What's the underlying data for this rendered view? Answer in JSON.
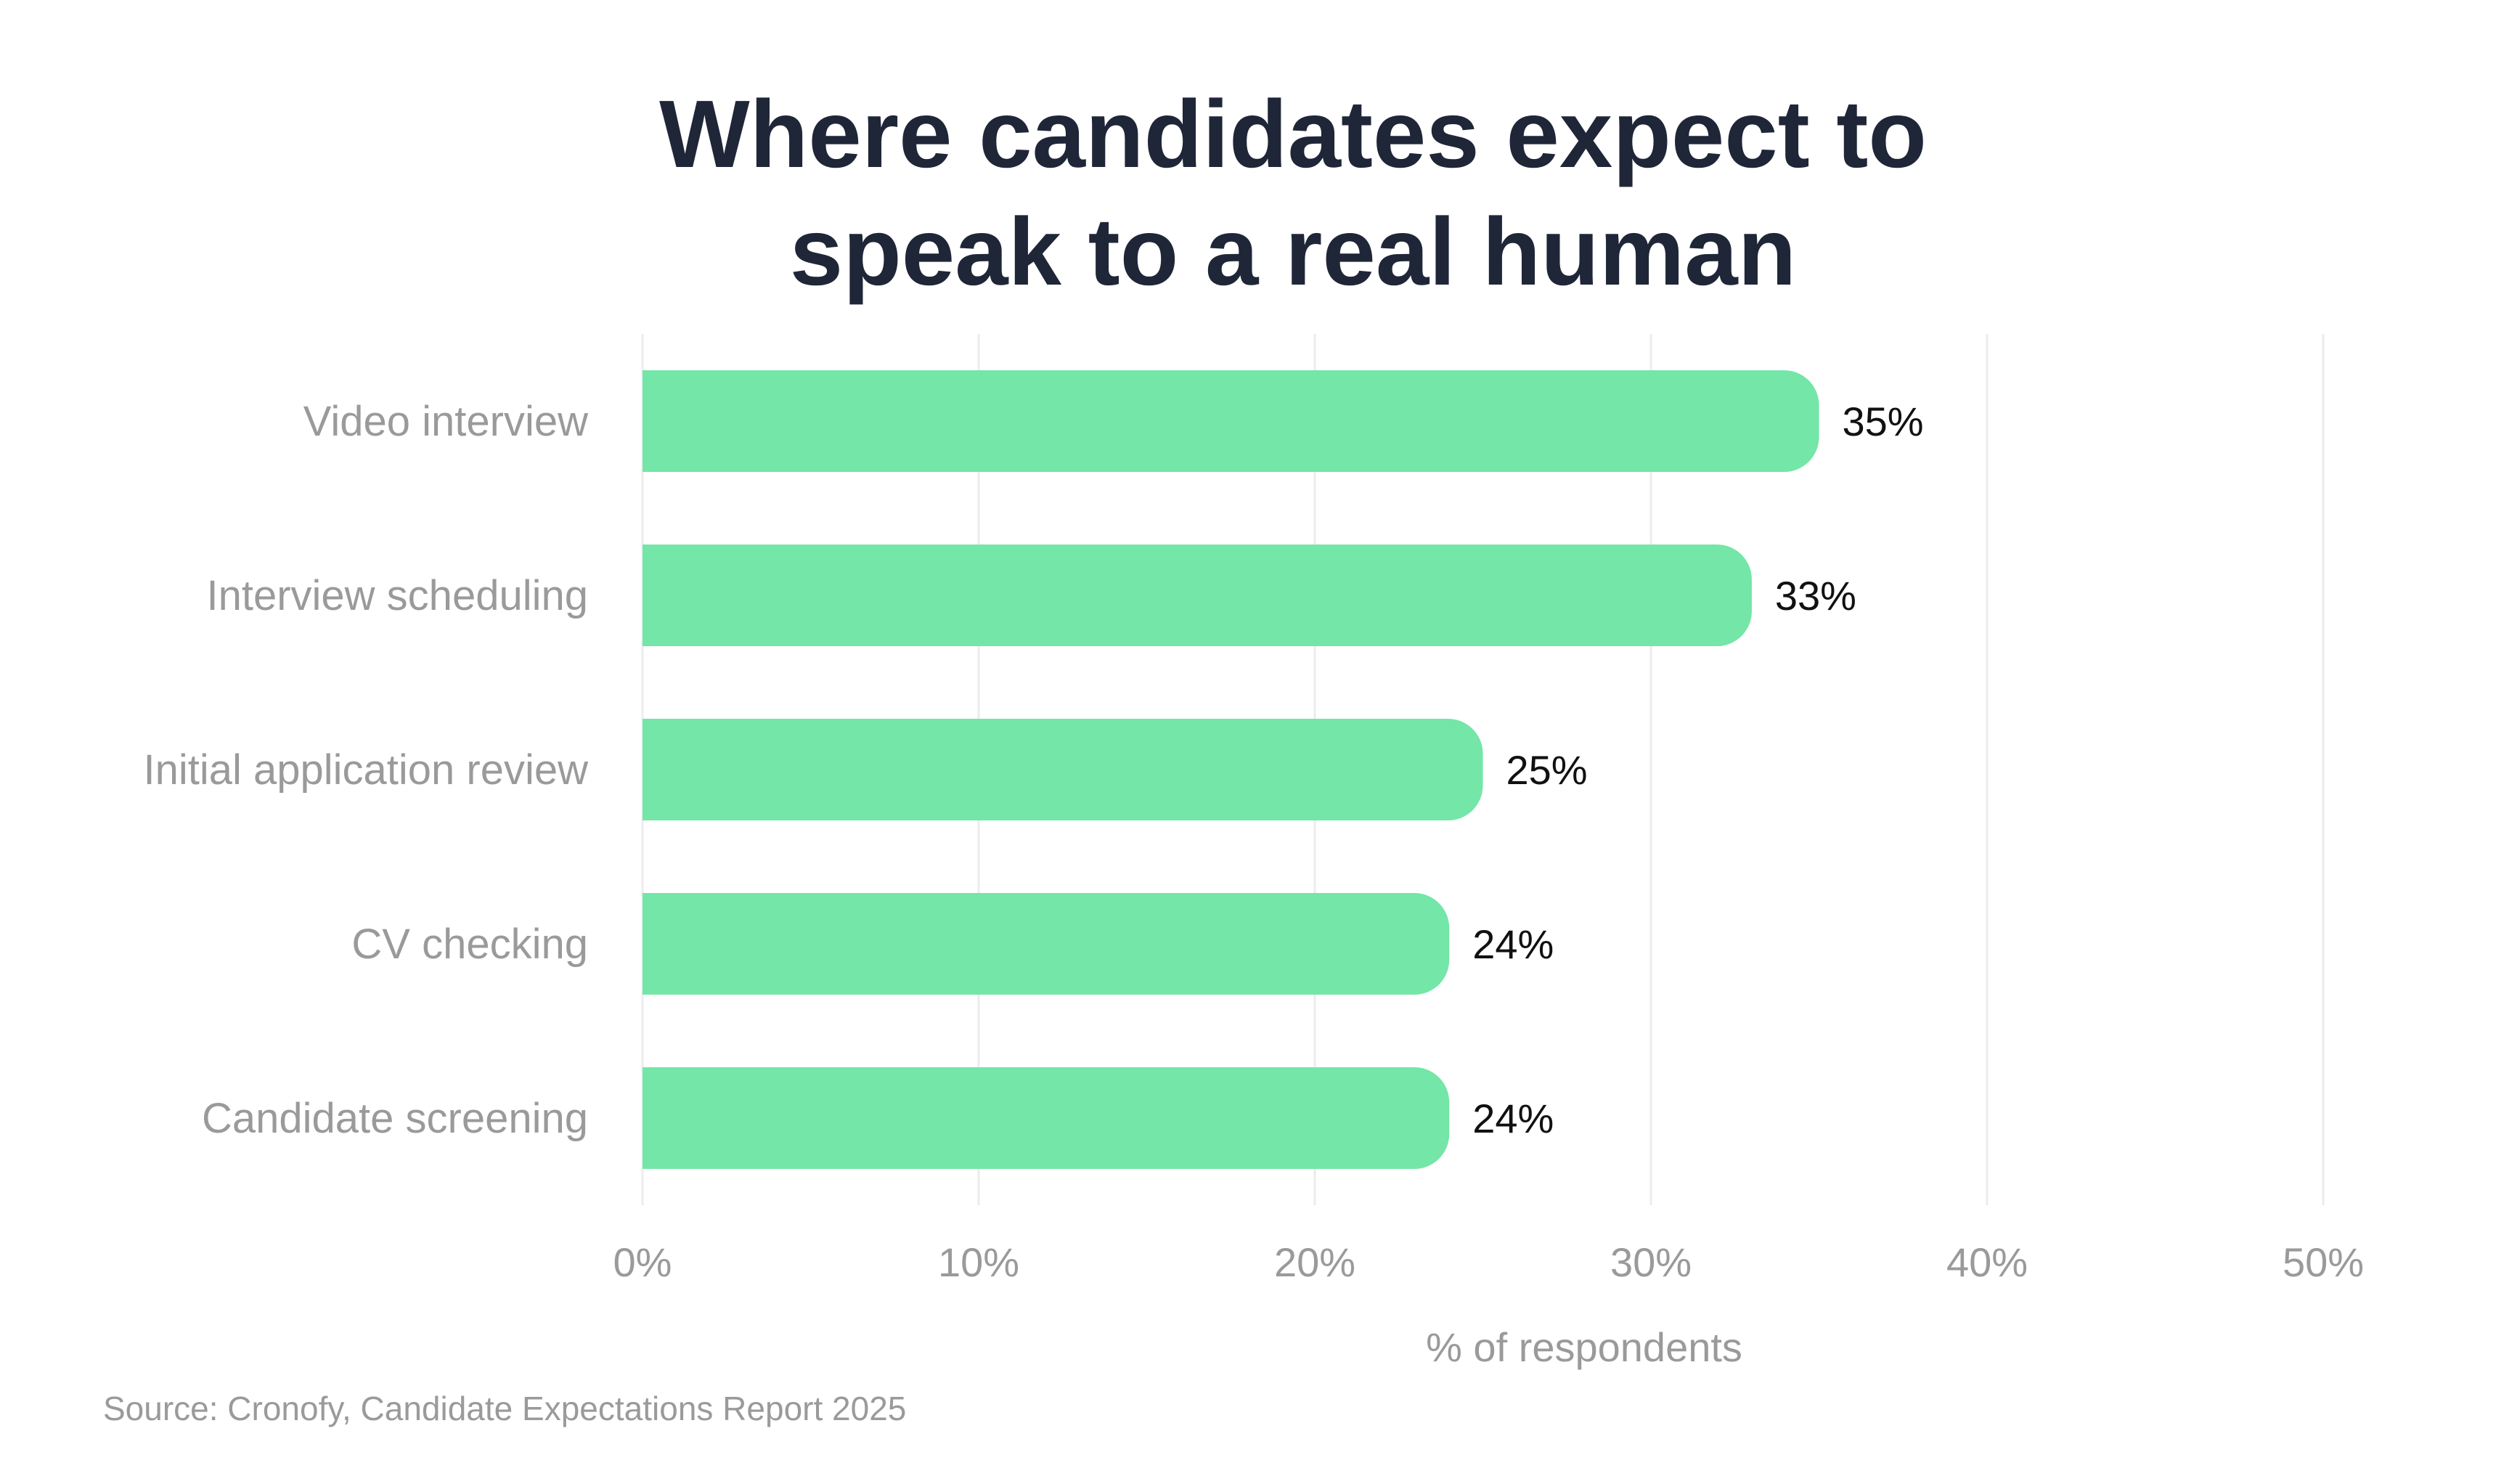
{
  "chart_data": {
    "type": "bar",
    "orientation": "horizontal",
    "title_lines": [
      "Where candidates expect to",
      "speak to a real human"
    ],
    "categories": [
      "Video interview",
      "Interview scheduling",
      "Initial application review",
      "CV checking",
      "Candidate screening"
    ],
    "values": [
      35,
      33,
      25,
      24,
      24
    ],
    "value_labels": [
      "35%",
      "33%",
      "25%",
      "24%",
      "24%"
    ],
    "xlabel": "% of respondents",
    "ylabel": "",
    "xlim": [
      0,
      50
    ],
    "xticks": [
      0,
      10,
      20,
      30,
      40,
      50
    ],
    "xtick_labels": [
      "0%",
      "10%",
      "20%",
      "30%",
      "40%",
      "50%"
    ],
    "grid": "vertical",
    "legend": "none",
    "bar_color": "#73e6a8"
  },
  "source": "Source: Cronofy, Candidate Expectations Report 2025",
  "colors": {
    "title": "#1f2638",
    "label": "#9a9a9a",
    "value": "#111111",
    "grid": "#ececec"
  }
}
